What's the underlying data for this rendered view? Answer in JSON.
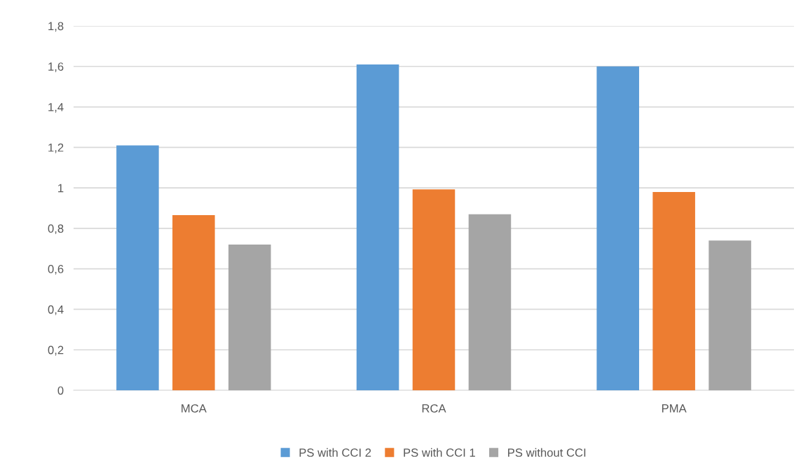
{
  "chart_data": {
    "type": "bar",
    "categories": [
      "MCA",
      "RCA",
      "PMA"
    ],
    "series": [
      {
        "name": "PS with CCI 2",
        "color": "#5b9bd5",
        "values": [
          1.21,
          1.61,
          1.6
        ]
      },
      {
        "name": "PS with CCI 1",
        "color": "#ed7d31",
        "values": [
          0.865,
          0.993,
          0.98
        ]
      },
      {
        "name": "PS without CCI",
        "color": "#a5a5a5",
        "values": [
          0.72,
          0.87,
          0.74
        ]
      }
    ],
    "ylim": [
      0,
      1.8
    ],
    "yticks": [
      0,
      {
        "value": 0.2,
        "label": "0,2"
      },
      {
        "value": 0.4,
        "label": "0,4"
      },
      {
        "value": 0.6,
        "label": "0,6"
      },
      {
        "value": 0.8,
        "label": "0,8"
      },
      1,
      {
        "value": 1.2,
        "label": "1,2"
      },
      {
        "value": 1.4,
        "label": "1,4"
      },
      {
        "value": 1.6,
        "label": "1,6"
      },
      {
        "value": 1.8,
        "label": "1,8"
      }
    ],
    "grid": "y",
    "legend": "bottom"
  }
}
